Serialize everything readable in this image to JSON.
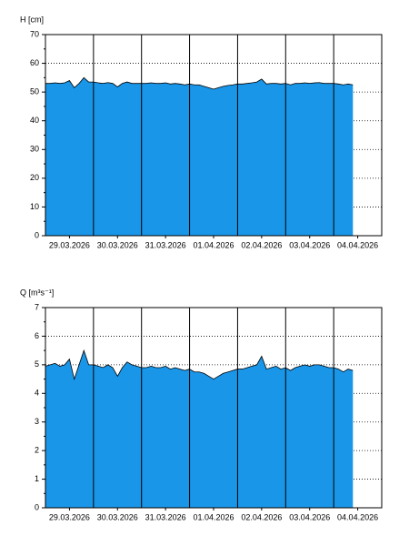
{
  "chart_data": [
    {
      "type": "area",
      "y_label": "H [cm]",
      "color": "#1a96e8",
      "line_color": "#000000",
      "xlim": [
        0,
        7
      ],
      "ylim": [
        0,
        70
      ],
      "yticks": [
        0,
        10,
        20,
        30,
        40,
        50,
        60,
        70
      ],
      "grid": true,
      "xticks": [
        {
          "value": 0.5,
          "label": "29.03.2026"
        },
        {
          "value": 1.5,
          "label": "30.03.2026"
        },
        {
          "value": 2.5,
          "label": "31.03.2026"
        },
        {
          "value": 3.5,
          "label": "01.04.2026"
        },
        {
          "value": 4.5,
          "label": "02.04.2026"
        },
        {
          "value": 5.5,
          "label": "03.04.2026"
        },
        {
          "value": 6.5,
          "label": "04.04.2026"
        }
      ],
      "x": [
        0,
        0.1,
        0.2,
        0.3,
        0.4,
        0.5,
        0.6,
        0.7,
        0.8,
        0.9,
        1,
        1.1,
        1.2,
        1.3,
        1.4,
        1.5,
        1.6,
        1.7,
        1.8,
        1.9,
        2,
        2.1,
        2.2,
        2.3,
        2.4,
        2.5,
        2.6,
        2.7,
        2.8,
        2.9,
        3,
        3.1,
        3.2,
        3.3,
        3.4,
        3.5,
        3.6,
        3.7,
        3.8,
        3.9,
        4,
        4.1,
        4.2,
        4.3,
        4.4,
        4.5,
        4.6,
        4.7,
        4.8,
        4.9,
        5,
        5.1,
        5.2,
        5.3,
        5.4,
        5.5,
        5.6,
        5.7,
        5.8,
        5.9,
        6,
        6.1,
        6.2,
        6.3,
        6.4
      ],
      "values": [
        53,
        53,
        53.2,
        53,
        53.2,
        54,
        51.5,
        53,
        55,
        53.5,
        53.5,
        53.2,
        53,
        53.3,
        53,
        51.8,
        53,
        53.5,
        53,
        53,
        53,
        53,
        53.2,
        53,
        53,
        53.2,
        52.8,
        53,
        52.8,
        52.5,
        52.8,
        52.5,
        52.5,
        52,
        51.5,
        51,
        51.5,
        52,
        52.3,
        52.5,
        52.8,
        52.8,
        53,
        53.2,
        53.5,
        54.5,
        52.8,
        53,
        53,
        52.8,
        53,
        52.5,
        53,
        53,
        53.2,
        53,
        53.2,
        53.3,
        53,
        53,
        53,
        52.8,
        52.5,
        52.8,
        52.5
      ]
    },
    {
      "type": "area",
      "y_label": "Q [m³s⁻¹]",
      "color": "#1a96e8",
      "line_color": "#000000",
      "xlim": [
        0,
        7
      ],
      "ylim": [
        0,
        7
      ],
      "yticks": [
        0,
        1,
        2,
        3,
        4,
        5,
        6,
        7
      ],
      "grid": true,
      "xticks": [
        {
          "value": 0.5,
          "label": "29.03.2026"
        },
        {
          "value": 1.5,
          "label": "30.03.2026"
        },
        {
          "value": 2.5,
          "label": "31.03.2026"
        },
        {
          "value": 3.5,
          "label": "01.04.2026"
        },
        {
          "value": 4.5,
          "label": "02.04.2026"
        },
        {
          "value": 5.5,
          "label": "03.04.2026"
        },
        {
          "value": 6.5,
          "label": "04.04.2026"
        }
      ],
      "x": [
        0,
        0.1,
        0.2,
        0.3,
        0.4,
        0.5,
        0.6,
        0.7,
        0.8,
        0.9,
        1,
        1.1,
        1.2,
        1.3,
        1.4,
        1.5,
        1.6,
        1.7,
        1.8,
        1.9,
        2,
        2.1,
        2.2,
        2.3,
        2.4,
        2.5,
        2.6,
        2.7,
        2.8,
        2.9,
        3,
        3.1,
        3.2,
        3.3,
        3.4,
        3.5,
        3.6,
        3.7,
        3.8,
        3.9,
        4,
        4.1,
        4.2,
        4.3,
        4.4,
        4.5,
        4.6,
        4.7,
        4.8,
        4.9,
        5,
        5.1,
        5.2,
        5.3,
        5.4,
        5.5,
        5.6,
        5.7,
        5.8,
        5.9,
        6,
        6.1,
        6.2,
        6.3,
        6.4
      ],
      "values": [
        4.95,
        5,
        5.05,
        4.95,
        5,
        5.2,
        4.5,
        5,
        5.5,
        5,
        5,
        4.95,
        4.9,
        5,
        4.9,
        4.6,
        4.9,
        5.1,
        5,
        4.95,
        4.9,
        4.9,
        4.95,
        4.9,
        4.9,
        4.95,
        4.85,
        4.9,
        4.85,
        4.8,
        4.85,
        4.75,
        4.75,
        4.7,
        4.6,
        4.5,
        4.6,
        4.7,
        4.75,
        4.8,
        4.85,
        4.85,
        4.9,
        4.95,
        5,
        5.3,
        4.85,
        4.9,
        4.95,
        4.85,
        4.9,
        4.8,
        4.9,
        4.95,
        5,
        4.95,
        5,
        5,
        4.95,
        4.9,
        4.9,
        4.85,
        4.75,
        4.85,
        4.8
      ]
    }
  ]
}
